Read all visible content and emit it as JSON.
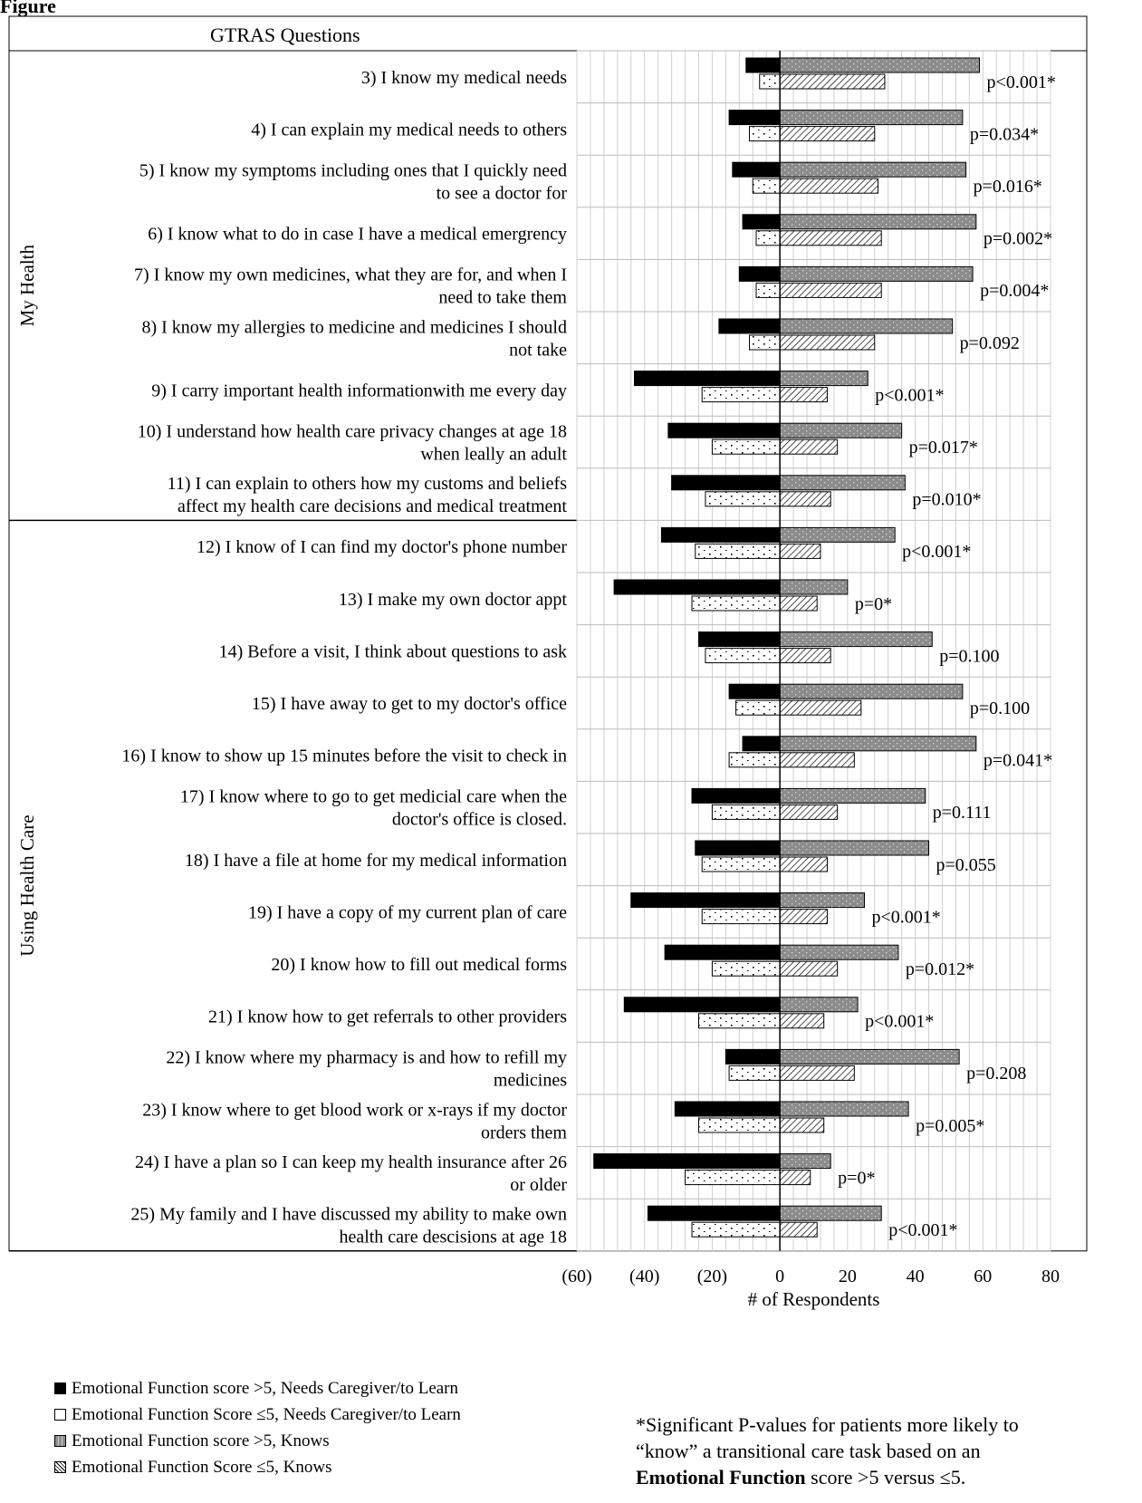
{
  "figure_label": "Figure",
  "footnote": {
    "line1": "*Significant P-values for patients more likely to",
    "line2": "“know” a transitional care task based on an",
    "bold": "Emotional Function",
    "rest": "score >5 versus ≤5."
  },
  "colors": {
    "ef_gt5_needs": "#000000",
    "ef_le5_needs": "#ffffff",
    "ef_gt5_knows": "#8c8c8c",
    "ef_le5_knows": "#ffffff",
    "border": "#000000",
    "grid": "#d0d0d0"
  },
  "chart_data": {
    "type": "bar",
    "orientation": "horizontal",
    "title": "GTRAS Questions",
    "xlabel": "# of Respondents",
    "xlim": [
      -60,
      80
    ],
    "xticks": [
      -60,
      -40,
      -20,
      0,
      20,
      40,
      60,
      80
    ],
    "xtick_labels": [
      "(60)",
      "(40)",
      "(20)",
      "0",
      "20",
      "40",
      "60",
      "80"
    ],
    "grid": true,
    "legend_position": "bottom-left",
    "groups": [
      {
        "name": "My Health",
        "count": 9
      },
      {
        "name": "Using Health Care",
        "count": 14
      }
    ],
    "categories": [
      [
        "3) I know my medical needs"
      ],
      [
        "4) I can explain my medical needs to others"
      ],
      [
        "5) I know my symptoms including ones that I quickly need",
        "to see a doctor for"
      ],
      [
        "6) I know what to do in case I have a medical emergrency"
      ],
      [
        "7) I know my own medicines, what they are for, and when I",
        "need to take them"
      ],
      [
        "8) I know my allergies to medicine and medicines I should",
        "not take"
      ],
      [
        "9) I carry important health informationwith me every day"
      ],
      [
        "10) I understand how health care privacy changes at age 18",
        "when leally an adult"
      ],
      [
        "11) I can explain to others how my customs and beliefs",
        "affect my health care decisions and medical treatment"
      ],
      [
        "12) I know of I can find my doctor's phone number"
      ],
      [
        "13) I make my own doctor appt"
      ],
      [
        "14) Before a visit, I think about questions to ask"
      ],
      [
        "15) I have away to get to my doctor's office"
      ],
      [
        "16) I know to show up 15 minutes before the visit to check in"
      ],
      [
        "17) I know where to go to get medicial care when the",
        "doctor's office is closed."
      ],
      [
        "18) I have a file at home for my medical information"
      ],
      [
        "19) I have a copy of my current plan of care"
      ],
      [
        "20) I know how to fill out medical forms"
      ],
      [
        "21) I know how to get referrals to other providers"
      ],
      [
        "22) I know where my pharmacy is and how to refill my",
        "medicines"
      ],
      [
        "23) I know where to get blood work or x-rays if my doctor",
        "orders them"
      ],
      [
        "24) I have a plan so I can keep my health insurance after 26",
        "or older"
      ],
      [
        "25) My family and I have discussed my ability to make own",
        "health care descisions at age 18"
      ]
    ],
    "series": [
      {
        "name": "Emotional Function score >5, Needs Caregiver/to Learn",
        "values": [
          -10,
          -15,
          -14,
          -11,
          -12,
          -18,
          -43,
          -33,
          -32,
          -35,
          -49,
          -24,
          -15,
          -11,
          -26,
          -25,
          -44,
          -34,
          -46,
          -16,
          -31,
          -55,
          -39
        ]
      },
      {
        "name": "Emotional Function Score ≤5, Needs Caregiver/to Learn",
        "values": [
          -6,
          -9,
          -8,
          -7,
          -7,
          -9,
          -23,
          -20,
          -22,
          -25,
          -26,
          -22,
          -13,
          -15,
          -20,
          -23,
          -23,
          -20,
          -24,
          -15,
          -24,
          -28,
          -26
        ]
      },
      {
        "name": "Emotional Function score >5, Knows",
        "values": [
          59,
          54,
          55,
          58,
          57,
          51,
          26,
          36,
          37,
          34,
          20,
          45,
          54,
          58,
          43,
          44,
          25,
          35,
          23,
          53,
          38,
          15,
          30
        ]
      },
      {
        "name": "Emotional Function Score ≤5, Knows",
        "values": [
          31,
          28,
          29,
          30,
          30,
          28,
          14,
          17,
          15,
          12,
          11,
          15,
          24,
          22,
          17,
          14,
          14,
          17,
          13,
          22,
          13,
          9,
          11
        ]
      }
    ],
    "pvalues": [
      "p<0.001*",
      "p=0.034*",
      "p=0.016*",
      "p=0.002*",
      "p=0.004*",
      "p=0.092",
      "p<0.001*",
      "p=0.017*",
      "p=0.010*",
      "p<0.001*",
      "p=0*",
      "p=0.100",
      "p=0.100",
      "p=0.041*",
      "p=0.111",
      "p=0.055",
      "p<0.001*",
      "p=0.012*",
      "p<0.001*",
      "p=0.208",
      "p=0.005*",
      "p=0*",
      "p<0.001*"
    ]
  }
}
